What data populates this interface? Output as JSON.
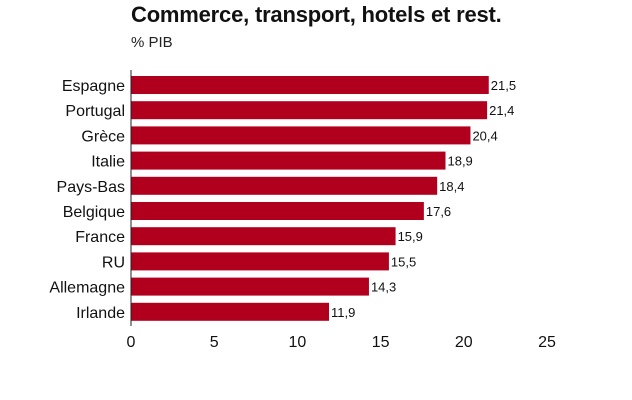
{
  "chart_data": {
    "type": "bar",
    "orientation": "horizontal",
    "title": "Commerce, transport, hotels et rest.",
    "subtitle": "% PIB",
    "categories": [
      "Espagne",
      "Portugal",
      "Grèce",
      "Italie",
      "Pays-Bas",
      "Belgique",
      "France",
      "RU",
      "Allemagne",
      "Irlande"
    ],
    "values": [
      21.5,
      21.4,
      20.4,
      18.9,
      18.4,
      17.6,
      15.9,
      15.5,
      14.3,
      11.9
    ],
    "value_labels": [
      "21,5",
      "21,4",
      "20,4",
      "18,9",
      "18,4",
      "17,6",
      "15,9",
      "15,5",
      "14,3",
      "11,9"
    ],
    "xlim": [
      0,
      25
    ],
    "xticks": [
      0,
      5,
      10,
      15,
      20,
      25
    ],
    "xlabel": "",
    "ylabel": "",
    "grid": false,
    "bar_color": "#b0001e"
  }
}
